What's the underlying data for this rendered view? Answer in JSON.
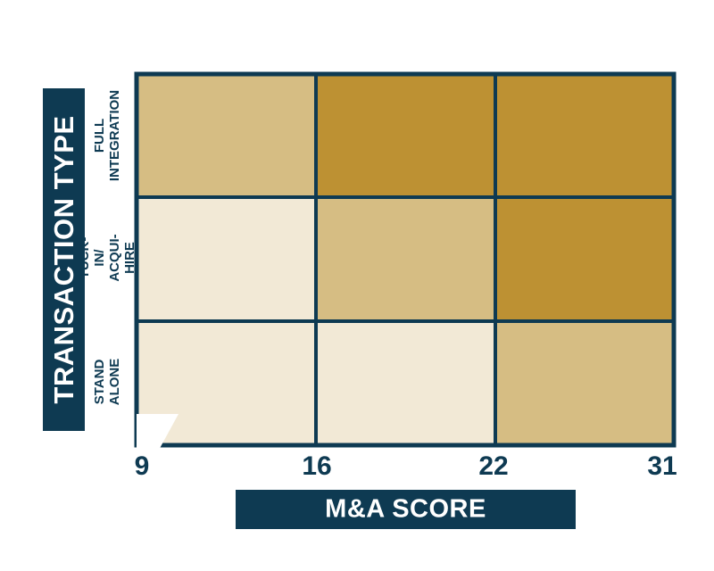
{
  "chart_data": {
    "type": "heatmap",
    "xlabel": "M&A SCORE",
    "ylabel": "TRANSACTION TYPE",
    "x_ticks": [
      9,
      16,
      22,
      31
    ],
    "rows": [
      {
        "label": "FULL\nINTEGRATION",
        "levels": [
          2,
          3,
          3
        ]
      },
      {
        "label": "TUCK-IN/\nACQUI-HIRE",
        "levels": [
          1,
          2,
          3
        ]
      },
      {
        "label": "STAND\nALONE",
        "levels": [
          1,
          1,
          2
        ]
      }
    ],
    "level_colors": {
      "1": "#f2e9d6",
      "2": "#d6bd83",
      "3": "#bd9133"
    },
    "grid_color": "#0e3a52"
  }
}
